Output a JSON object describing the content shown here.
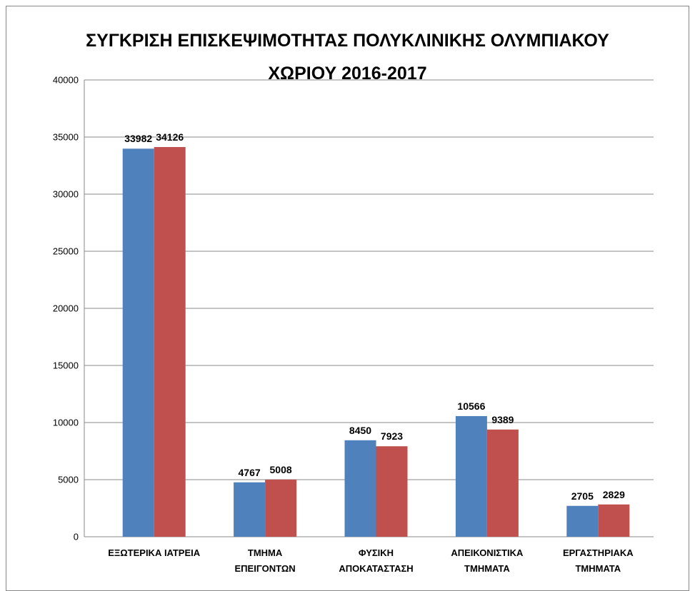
{
  "chart_data": {
    "type": "bar",
    "title": "ΣΥΓΚΡΙΣΗ ΕΠΙΣΚΕΨΙΜΟΤΗΤΑΣ ΠΟΛΥΚΛΙΝΙΚΗΣ ΟΛΥΜΠΙΑΚΟΥ\nΧΩΡΙΟΥ 2016-2017",
    "categories": [
      "ΕΞΩΤΕΡΙΚΑ ΙΑΤΡΕΙΑ",
      "ΤΜΗΜΑ\nΕΠΕΙΓΟΝΤΩΝ",
      "ΦΥΣΙΚΗ\nΑΠΟΚΑΤΑΣΤΑΣΗ",
      "ΑΠΕΙΚΟΝΙΣΤΙΚΑ\nΤΜΗΜΑΤΑ",
      "ΕΡΓΑΣΤΗΡΙΑΚΑ\nΤΜΗΜΑΤΑ"
    ],
    "series": [
      {
        "color": "#4f81bd",
        "values": [
          33982,
          4767,
          8450,
          10566,
          2705
        ]
      },
      {
        "color": "#c0504d",
        "values": [
          34126,
          5008,
          7923,
          9389,
          2829
        ]
      }
    ],
    "ylim": [
      0,
      40000
    ],
    "yticks": [
      0,
      5000,
      10000,
      15000,
      20000,
      25000,
      30000,
      35000,
      40000
    ],
    "grid": true
  }
}
